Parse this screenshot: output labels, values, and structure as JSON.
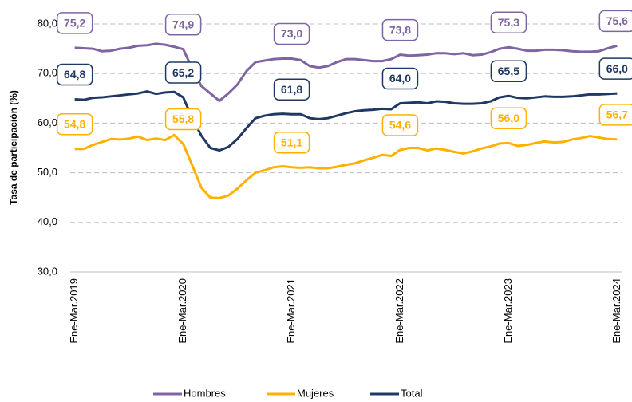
{
  "chart_data": {
    "type": "line",
    "y_label": "Tasa de participación (%)",
    "categories": [
      "Ene-Mar.2019",
      null,
      null,
      null,
      null,
      null,
      null,
      null,
      null,
      null,
      null,
      null,
      "Ene-Mar.2020",
      null,
      null,
      null,
      null,
      null,
      null,
      null,
      null,
      null,
      null,
      null,
      "Ene-Mar.2021",
      null,
      null,
      null,
      null,
      null,
      null,
      null,
      null,
      null,
      null,
      null,
      "Ene-Mar.2022",
      null,
      null,
      null,
      null,
      null,
      null,
      null,
      null,
      null,
      null,
      null,
      "Ene-Mar.2023",
      null,
      null,
      null,
      null,
      null,
      null,
      null,
      null,
      null,
      null,
      null,
      "Ene-Mar.2024"
    ],
    "series": [
      {
        "name": "Hombres",
        "color": "#8064a2",
        "values": [
          75.2,
          75.1,
          75.0,
          74.5,
          74.6,
          75.0,
          75.2,
          75.6,
          75.7,
          76.0,
          75.8,
          75.4,
          74.9,
          71.0,
          67.5,
          66.0,
          64.5,
          66.0,
          67.8,
          70.5,
          72.3,
          72.6,
          72.9,
          73.0,
          73.0,
          72.7,
          71.5,
          71.2,
          71.5,
          72.3,
          72.9,
          72.9,
          72.7,
          72.5,
          72.5,
          72.9,
          73.8,
          73.6,
          73.7,
          73.8,
          74.1,
          74.1,
          73.9,
          74.1,
          73.7,
          73.8,
          74.3,
          75.0,
          75.3,
          75.0,
          74.6,
          74.6,
          74.8,
          74.8,
          74.7,
          74.5,
          74.4,
          74.4,
          74.5,
          75.1,
          75.6
        ],
        "value_labels": [
          "75,2",
          null,
          null,
          null,
          null,
          null,
          null,
          null,
          null,
          null,
          null,
          null,
          "74,9",
          null,
          null,
          null,
          null,
          null,
          null,
          null,
          null,
          null,
          null,
          null,
          "73,0",
          null,
          null,
          null,
          null,
          null,
          null,
          null,
          null,
          null,
          null,
          null,
          "73,8",
          null,
          null,
          null,
          null,
          null,
          null,
          null,
          null,
          null,
          null,
          null,
          "75,3",
          null,
          null,
          null,
          null,
          null,
          null,
          null,
          null,
          null,
          null,
          null,
          "75,6"
        ]
      },
      {
        "name": "Mujeres",
        "color": "#ffb000",
        "values": [
          54.8,
          54.8,
          55.6,
          56.2,
          56.8,
          56.7,
          56.9,
          57.3,
          56.6,
          56.9,
          56.6,
          57.6,
          55.8,
          51.5,
          47.0,
          45.0,
          44.9,
          45.4,
          46.8,
          48.5,
          50.0,
          50.5,
          51.1,
          51.3,
          51.1,
          51.0,
          51.1,
          50.9,
          50.9,
          51.2,
          51.6,
          51.9,
          52.5,
          53.0,
          53.6,
          53.4,
          54.6,
          55.0,
          55.0,
          54.5,
          54.9,
          54.6,
          54.2,
          53.9,
          54.3,
          54.9,
          55.3,
          55.9,
          56.0,
          55.4,
          55.6,
          56.0,
          56.3,
          56.1,
          56.2,
          56.7,
          57.0,
          57.4,
          57.1,
          56.8,
          56.7
        ],
        "value_labels": [
          "54,8",
          null,
          null,
          null,
          null,
          null,
          null,
          null,
          null,
          null,
          null,
          null,
          "55,8",
          null,
          null,
          null,
          null,
          null,
          null,
          null,
          null,
          null,
          null,
          null,
          "51,1",
          null,
          null,
          null,
          null,
          null,
          null,
          null,
          null,
          null,
          null,
          null,
          "54,6",
          null,
          null,
          null,
          null,
          null,
          null,
          null,
          null,
          null,
          null,
          null,
          "56,0",
          null,
          null,
          null,
          null,
          null,
          null,
          null,
          null,
          null,
          null,
          null,
          "56,7"
        ]
      },
      {
        "name": "Total",
        "color": "#1f3864",
        "values": [
          64.8,
          64.7,
          65.1,
          65.2,
          65.4,
          65.6,
          65.8,
          66.0,
          66.4,
          65.9,
          66.2,
          66.3,
          65.2,
          61.0,
          57.5,
          55.0,
          54.5,
          55.2,
          56.8,
          59.0,
          61.0,
          61.5,
          61.8,
          61.9,
          61.8,
          61.8,
          61.0,
          60.8,
          61.0,
          61.5,
          62.0,
          62.4,
          62.6,
          62.7,
          62.9,
          62.8,
          64.0,
          64.1,
          64.2,
          64.0,
          64.4,
          64.3,
          64.0,
          63.9,
          63.9,
          64.0,
          64.4,
          65.2,
          65.5,
          65.1,
          65.0,
          65.2,
          65.4,
          65.3,
          65.3,
          65.4,
          65.6,
          65.8,
          65.8,
          65.9,
          66.0
        ],
        "value_labels": [
          "64,8",
          null,
          null,
          null,
          null,
          null,
          null,
          null,
          null,
          null,
          null,
          null,
          "65,2",
          null,
          null,
          null,
          null,
          null,
          null,
          null,
          null,
          null,
          null,
          null,
          "61,8",
          null,
          null,
          null,
          null,
          null,
          null,
          null,
          null,
          null,
          null,
          null,
          "64,0",
          null,
          null,
          null,
          null,
          null,
          null,
          null,
          null,
          null,
          null,
          null,
          "65,5",
          null,
          null,
          null,
          null,
          null,
          null,
          null,
          null,
          null,
          null,
          null,
          "66,0"
        ]
      }
    ],
    "ylim": [
      30,
      80
    ],
    "yticks": [
      {
        "value": 30,
        "label": "30,0"
      },
      {
        "value": 40,
        "label": "40,0"
      },
      {
        "value": 50,
        "label": "50,0"
      },
      {
        "value": 60,
        "label": "60,0"
      },
      {
        "value": 70,
        "label": "70,0"
      },
      {
        "value": 80,
        "label": "80,0"
      }
    ],
    "grid": true,
    "legend": "bottom"
  }
}
